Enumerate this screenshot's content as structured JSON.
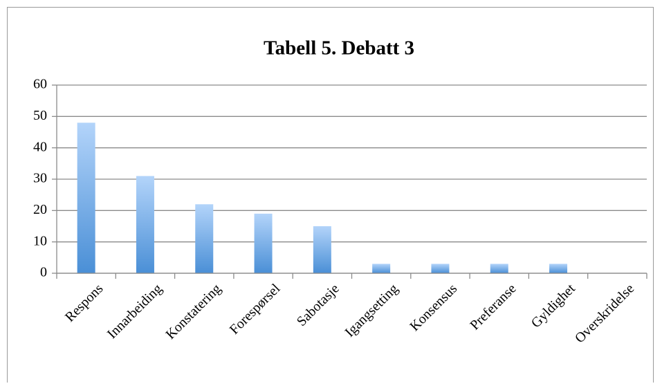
{
  "chart_data": {
    "type": "bar",
    "title": "Tabell 5. Debatt 3",
    "categories": [
      "Respons",
      "Innarbeiding",
      "Konstatering",
      "Forespørsel",
      "Sabotasje",
      "Igangsetting",
      "Konsensus",
      "Preferanse",
      "Gyldighet",
      "Overskridelse"
    ],
    "values": [
      48,
      31,
      22,
      19,
      15,
      3,
      3,
      3,
      3,
      0
    ],
    "color": "#4a8fd6",
    "ylim": [
      0,
      60
    ],
    "yticks": [
      0,
      10,
      20,
      30,
      40,
      50,
      60
    ],
    "grid": true
  }
}
